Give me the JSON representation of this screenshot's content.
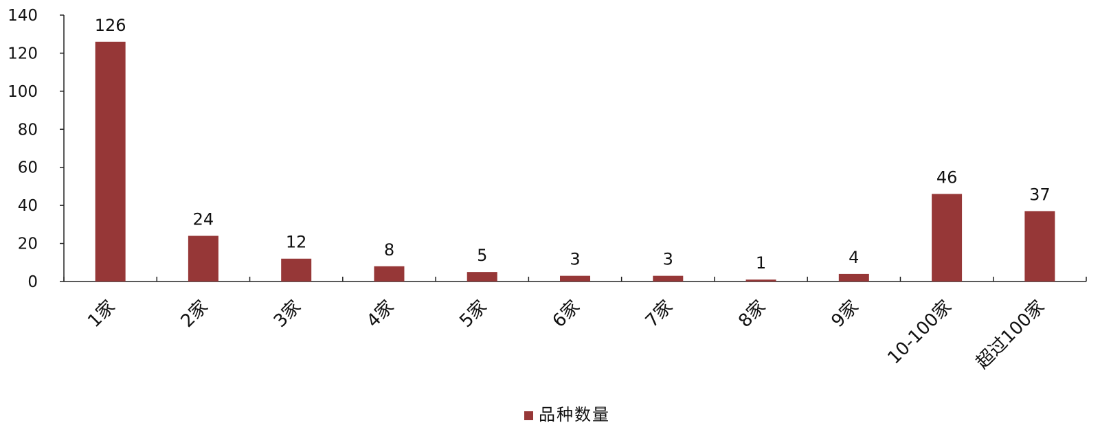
{
  "chart_data": {
    "type": "bar",
    "categories": [
      "1家",
      "2家",
      "3家",
      "4家",
      "5家",
      "6家",
      "7家",
      "8家",
      "9家",
      "10-100家",
      "超过100家"
    ],
    "series": [
      {
        "name": "品种数量",
        "values": [
          126,
          24,
          12,
          8,
          5,
          3,
          3,
          1,
          4,
          46,
          37
        ],
        "color": "#963737"
      }
    ],
    "ylim": [
      0,
      140
    ],
    "yticks": [
      0,
      20,
      40,
      60,
      80,
      100,
      120,
      140
    ],
    "grid": false,
    "legend_position": "bottom-center",
    "data_labels": true
  }
}
